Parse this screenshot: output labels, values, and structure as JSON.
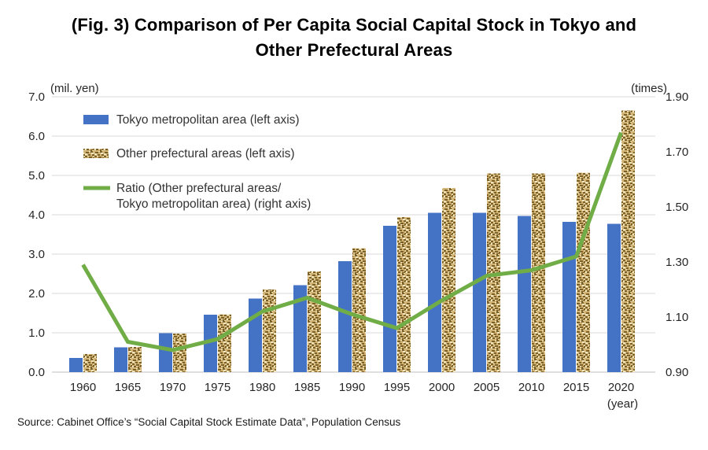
{
  "title": {
    "line1": "(Fig. 3) Comparison of Per Capita Social Capital Stock in Tokyo and",
    "line2": "Other Prefectural Areas"
  },
  "source": "Source: Cabinet Office’s “Social Capital Stock Estimate Data”, Population Census",
  "colors": {
    "tokyo_bar": "#4472C4",
    "other_bar_base": "#D3B477",
    "other_bar_dark": "#7C6126",
    "other_bar_light": "#F2E6C0",
    "ratio_line": "#70AD47",
    "gridline": "#D9D9D9",
    "axis_line": "#BFBFBF",
    "tick_text": "#262626",
    "legend_text": "#333333"
  },
  "chart_data": {
    "type": "combo",
    "subtypes": [
      "bar",
      "bar",
      "line"
    ],
    "categories": [
      "1960",
      "1965",
      "1970",
      "1975",
      "1980",
      "1985",
      "1990",
      "1995",
      "2000",
      "2005",
      "2010",
      "2015",
      "2020"
    ],
    "series": [
      {
        "name": "Tokyo metropolitan area (left axis)",
        "type": "bar",
        "axis": "left",
        "values": [
          0.36,
          0.63,
          0.99,
          1.46,
          1.87,
          2.21,
          2.82,
          3.72,
          4.05,
          4.05,
          3.97,
          3.82,
          3.77
        ]
      },
      {
        "name": "Other prefectural areas (left axis)",
        "type": "bar",
        "axis": "left",
        "fill": "woven-pattern",
        "values": [
          0.46,
          0.64,
          0.98,
          1.47,
          2.1,
          2.56,
          3.15,
          3.94,
          4.68,
          5.05,
          5.05,
          5.07,
          6.65
        ]
      },
      {
        "name": "Ratio (Other prefectural areas/ Tokyo metropolitan area) (right axis)",
        "type": "line",
        "axis": "right",
        "values": [
          1.29,
          1.01,
          0.98,
          1.02,
          1.12,
          1.17,
          1.11,
          1.06,
          1.16,
          1.25,
          1.27,
          1.32,
          1.77
        ]
      }
    ],
    "left_axis": {
      "unit_label": "(mil. yen)",
      "min": 0.0,
      "max": 7.0,
      "step": 1.0,
      "tick_labels": [
        "0.0",
        "1.0",
        "2.0",
        "3.0",
        "4.0",
        "5.0",
        "6.0",
        "7.0"
      ]
    },
    "right_axis": {
      "unit_label": "(times)",
      "min": 0.9,
      "max": 1.9,
      "step": 0.2,
      "tick_labels": [
        "0.90",
        "1.10",
        "1.30",
        "1.50",
        "1.70",
        "1.90"
      ]
    },
    "x_axis": {
      "unit_label": "(year)"
    },
    "grid": true,
    "legend": {
      "position": "top-left-inside",
      "items": [
        {
          "lines": [
            "Tokyo metropolitan area (left axis)"
          ]
        },
        {
          "lines": [
            "Other prefectural areas (left axis)"
          ]
        },
        {
          "lines": [
            "Ratio (Other prefectural areas/",
            "Tokyo metropolitan area) (right axis)"
          ]
        }
      ]
    }
  }
}
